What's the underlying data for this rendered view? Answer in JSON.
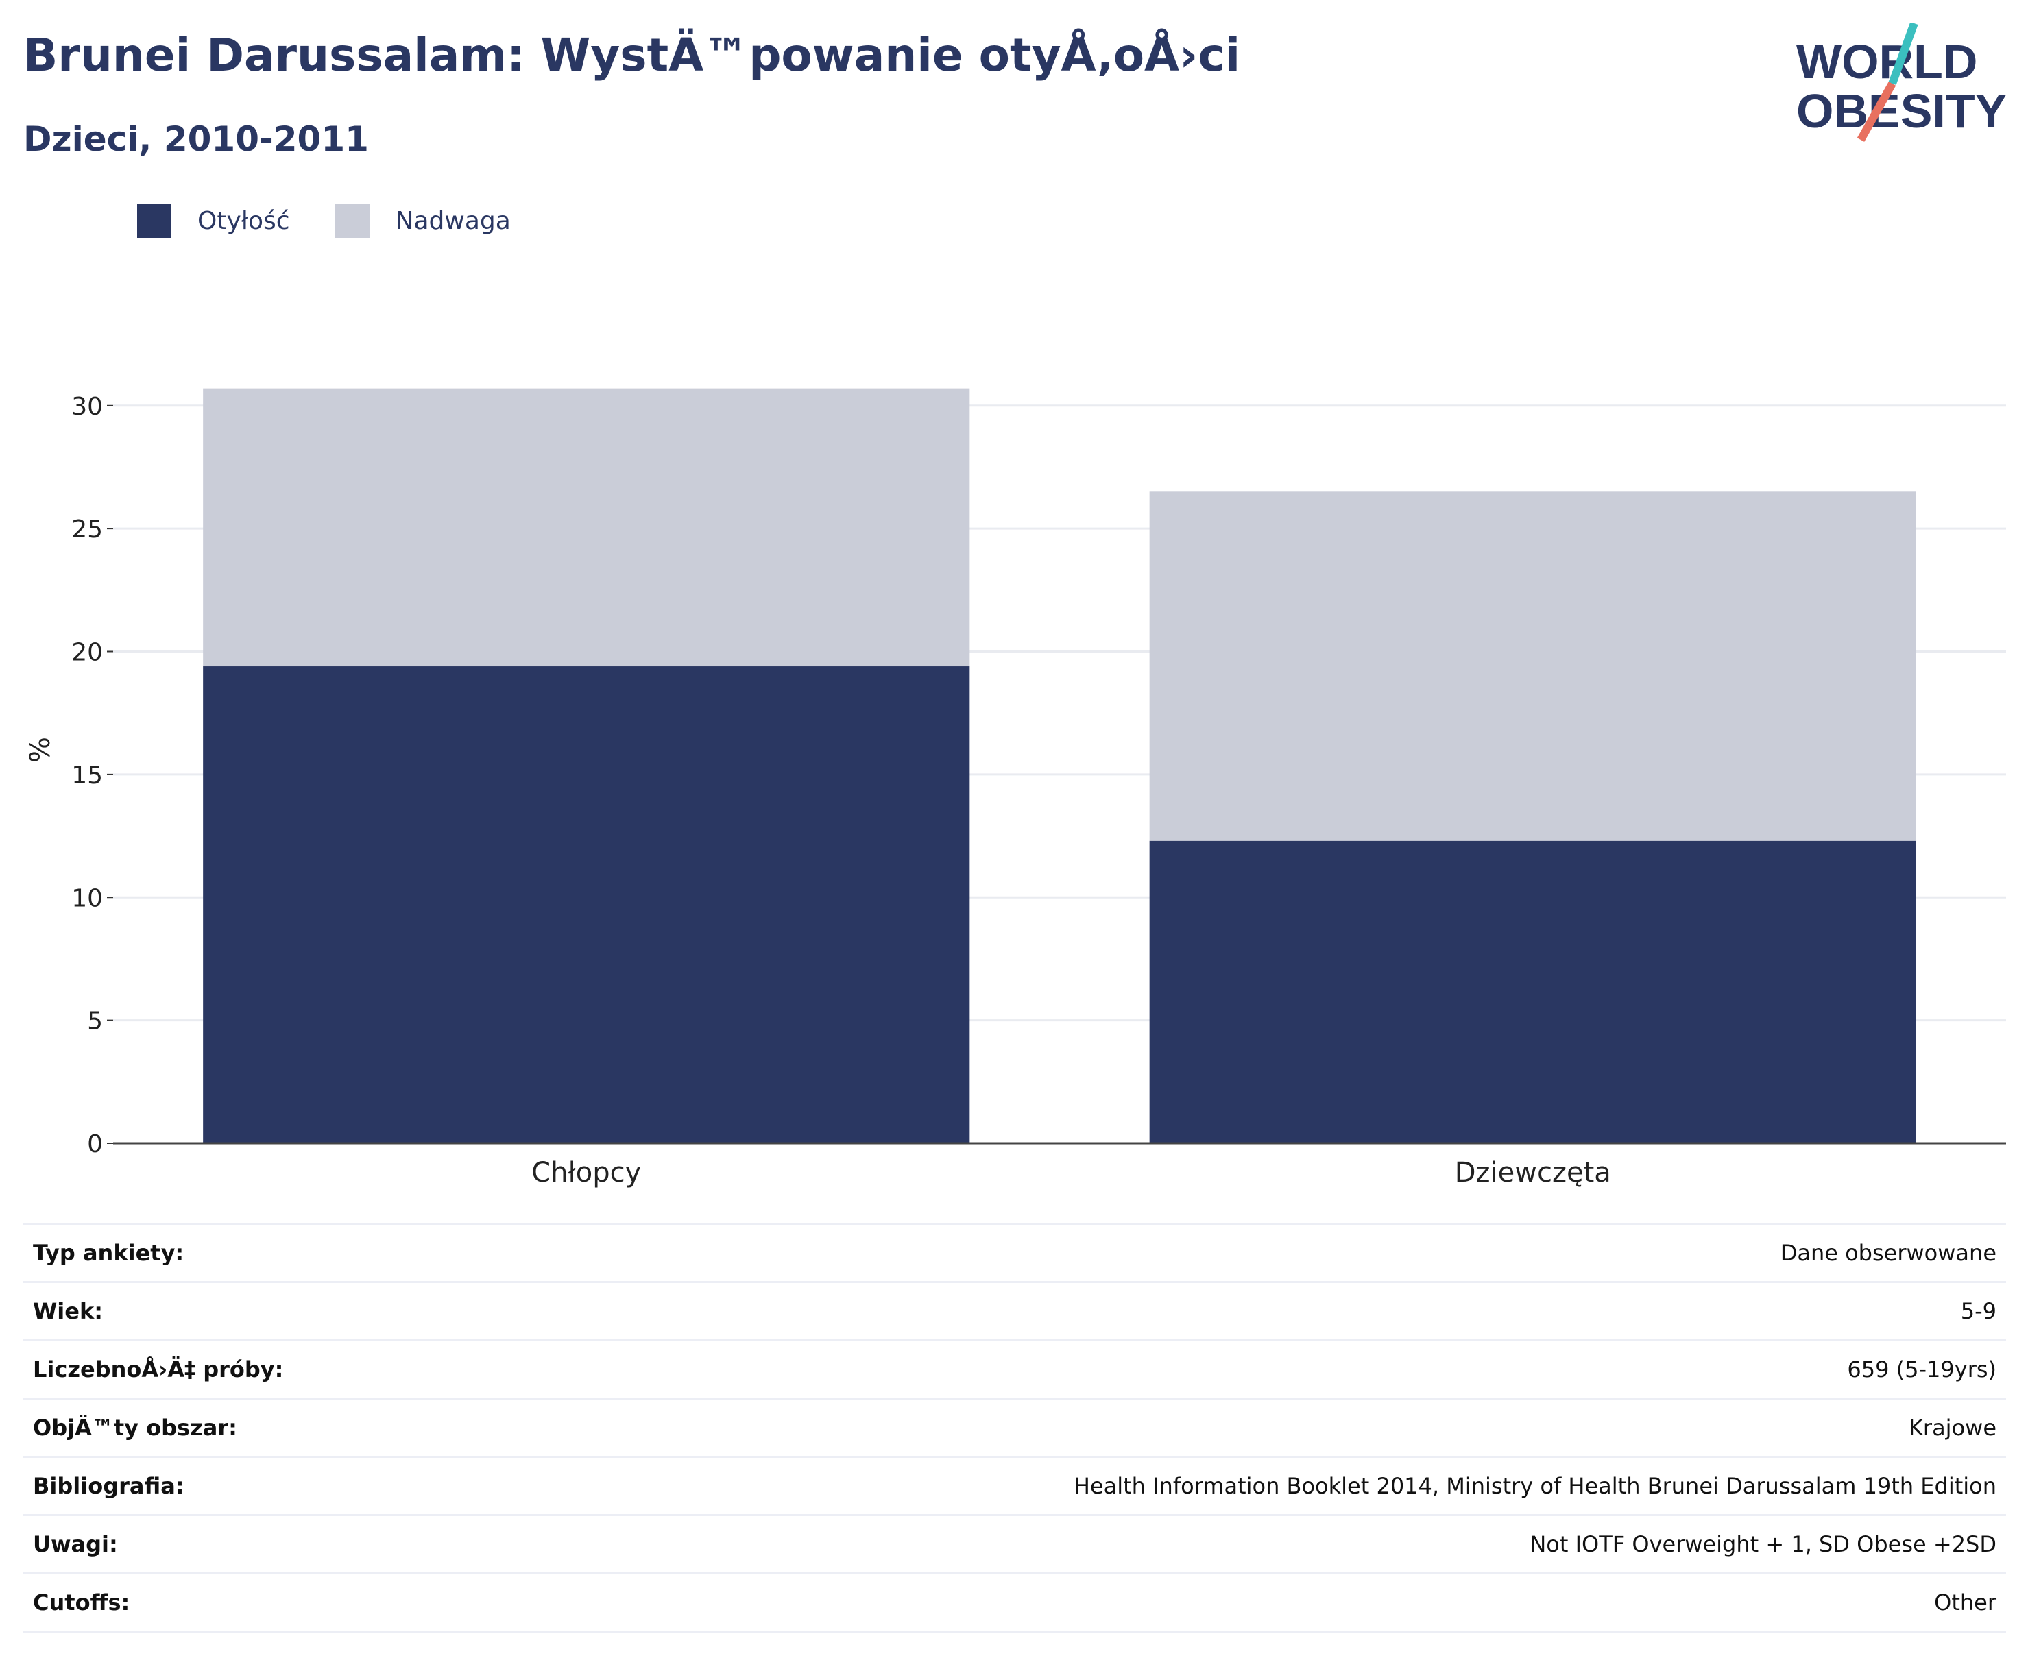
{
  "header": {
    "title": "Brunei Darussalam: WystÄ™powanie otyÅ‚oÅ›ci",
    "subtitle": "Dzieci, 2010-2011"
  },
  "logo": {
    "line1": "WORLD",
    "line2": "OBESITY"
  },
  "colors": {
    "obesity": "#2a3762",
    "overweight": "#cacdd8",
    "teal": "#3bbfbf",
    "coral": "#e8705f"
  },
  "chart_data": {
    "type": "bar",
    "stacked": true,
    "categories": [
      "Chłopcy",
      "Dziewczęta"
    ],
    "series": [
      {
        "name": "Otyłość",
        "values": [
          19.4,
          12.3
        ]
      },
      {
        "name": "Nadwaga",
        "values": [
          11.3,
          14.2
        ]
      }
    ],
    "ylabel": "%",
    "ylim": [
      0,
      32
    ],
    "yticks": [
      0,
      5,
      10,
      15,
      20,
      25,
      30
    ],
    "grid": true,
    "legend": "top-left"
  },
  "info": [
    {
      "label": "Typ ankiety:",
      "value": "Dane obserwowane"
    },
    {
      "label": "Wiek:",
      "value": "5-9"
    },
    {
      "label": "LiczebnoÅ›Ä‡ próby:",
      "value": "659 (5-19yrs)"
    },
    {
      "label": "ObjÄ™ty obszar:",
      "value": "Krajowe"
    },
    {
      "label": "Bibliografia:",
      "value": "Health Information Booklet 2014, Ministry of Health Brunei Darussalam 19th Edition"
    },
    {
      "label": "Uwagi:",
      "value": "Not IOTF Overweight + 1, SD Obese +2SD"
    },
    {
      "label": "Cutoffs:",
      "value": "Other"
    }
  ]
}
